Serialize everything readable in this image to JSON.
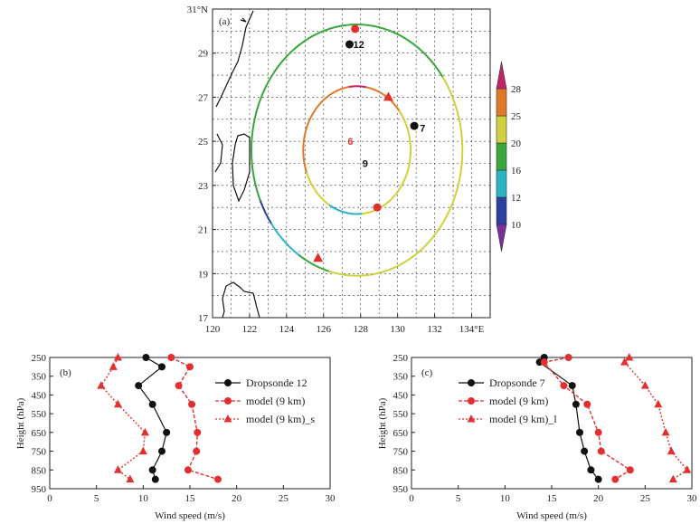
{
  "chart_data": [
    {
      "id": "a",
      "type": "map",
      "panel_label": "(a)",
      "lon_range": [
        120,
        135
      ],
      "lat_range": [
        17,
        31
      ],
      "x_ticks": [
        "120",
        "122",
        "124",
        "126",
        "128",
        "130",
        "132",
        "134°E"
      ],
      "x_tick_values": [
        120,
        122,
        124,
        126,
        128,
        130,
        132,
        134
      ],
      "y_ticks": [
        "17",
        "19",
        "21",
        "23",
        "25",
        "27",
        "29",
        "31°N"
      ],
      "y_tick_values": [
        17,
        19,
        21,
        23,
        25,
        27,
        29,
        31
      ],
      "colorbar": {
        "labels": [
          "10",
          "12",
          "16",
          "20",
          "25",
          "28"
        ],
        "colors": [
          "#7a2f9a",
          "#2d3fa0",
          "#2bb3c6",
          "#3aa63c",
          "#cfd23c",
          "#e07a2a",
          "#c2246a"
        ]
      },
      "rings": [
        {
          "name": "outer",
          "center": [
            127.8,
            24.6
          ],
          "radius_deg": 5.7
        },
        {
          "name": "inner",
          "center": [
            127.8,
            24.6
          ],
          "radius_deg": 2.9
        }
      ],
      "labels": [
        {
          "text": "6",
          "lon": 127.3,
          "lat": 25.0,
          "color": "#e23030"
        },
        {
          "text": "9",
          "lon": 128.1,
          "lat": 24.0,
          "color": "#111111"
        },
        {
          "text": "12",
          "lon": 127.6,
          "lat": 29.4,
          "color": "#111111"
        },
        {
          "text": "7",
          "lon": 131.2,
          "lat": 25.6,
          "color": "#111111"
        }
      ],
      "dropsondes": [
        {
          "id": "12",
          "lon": 127.4,
          "lat": 29.4
        },
        {
          "id": "7",
          "lon": 130.9,
          "lat": 25.7
        }
      ],
      "model_points": [
        {
          "lon": 127.7,
          "lat": 30.1
        },
        {
          "lon": 128.9,
          "lat": 22.0
        }
      ],
      "model_s_points": [
        {
          "lon": 129.5,
          "lat": 27.0
        },
        {
          "lon": 125.7,
          "lat": 19.7
        }
      ]
    },
    {
      "id": "b",
      "type": "line",
      "panel_label": "(b)",
      "xlabel": "Wind speed (m/s)",
      "ylabel": "Height (hPa)",
      "xlim": [
        0,
        30
      ],
      "x_ticks": [
        0,
        5,
        10,
        15,
        20,
        25,
        30
      ],
      "levels": [
        250,
        300,
        400,
        500,
        650,
        750,
        850,
        900
      ],
      "y_ticks": [
        "250",
        "350",
        "450",
        "550",
        "650",
        "750",
        "850",
        "950"
      ],
      "y_tick_values": [
        250,
        350,
        450,
        550,
        650,
        750,
        850,
        950
      ],
      "series": [
        {
          "name": "Dropsonde 12",
          "style": "obs",
          "values": [
            10.3,
            12.0,
            9.5,
            11.0,
            12.5,
            12.0,
            11.0,
            11.3
          ]
        },
        {
          "name": "model (9 km)",
          "style": "model",
          "values": [
            13.0,
            15.0,
            13.8,
            15.2,
            15.8,
            15.7,
            14.8,
            18.0
          ]
        },
        {
          "name": "model (9 km)_s",
          "style": "model_s",
          "values": [
            7.3,
            6.8,
            5.5,
            7.3,
            10.2,
            10.0,
            7.3,
            8.6
          ]
        }
      ]
    },
    {
      "id": "c",
      "type": "line",
      "panel_label": "(c)",
      "xlabel": "Wind speed (m/s)",
      "ylabel": "Height (hPa)",
      "xlim": [
        0,
        30
      ],
      "x_ticks": [
        0,
        5,
        10,
        15,
        20,
        25,
        30
      ],
      "levels": [
        250,
        275,
        400,
        500,
        650,
        750,
        850,
        900
      ],
      "y_ticks": [
        "250",
        "350",
        "450",
        "550",
        "650",
        "750",
        "850",
        "950"
      ],
      "y_tick_values": [
        250,
        350,
        450,
        550,
        650,
        750,
        850,
        950
      ],
      "series": [
        {
          "name": "Dropsonde 7",
          "style": "obs",
          "values": [
            14.2,
            13.7,
            17.2,
            17.6,
            18.0,
            18.5,
            19.2,
            20.0
          ]
        },
        {
          "name": "model (9 km)",
          "style": "model",
          "values": [
            16.8,
            14.2,
            16.3,
            18.8,
            20.0,
            20.3,
            23.4,
            21.8
          ]
        },
        {
          "name": "model (9 km)_l",
          "style": "model_s",
          "values": [
            23.3,
            22.8,
            25.0,
            26.4,
            27.2,
            27.8,
            29.5,
            28.0
          ]
        }
      ]
    }
  ]
}
